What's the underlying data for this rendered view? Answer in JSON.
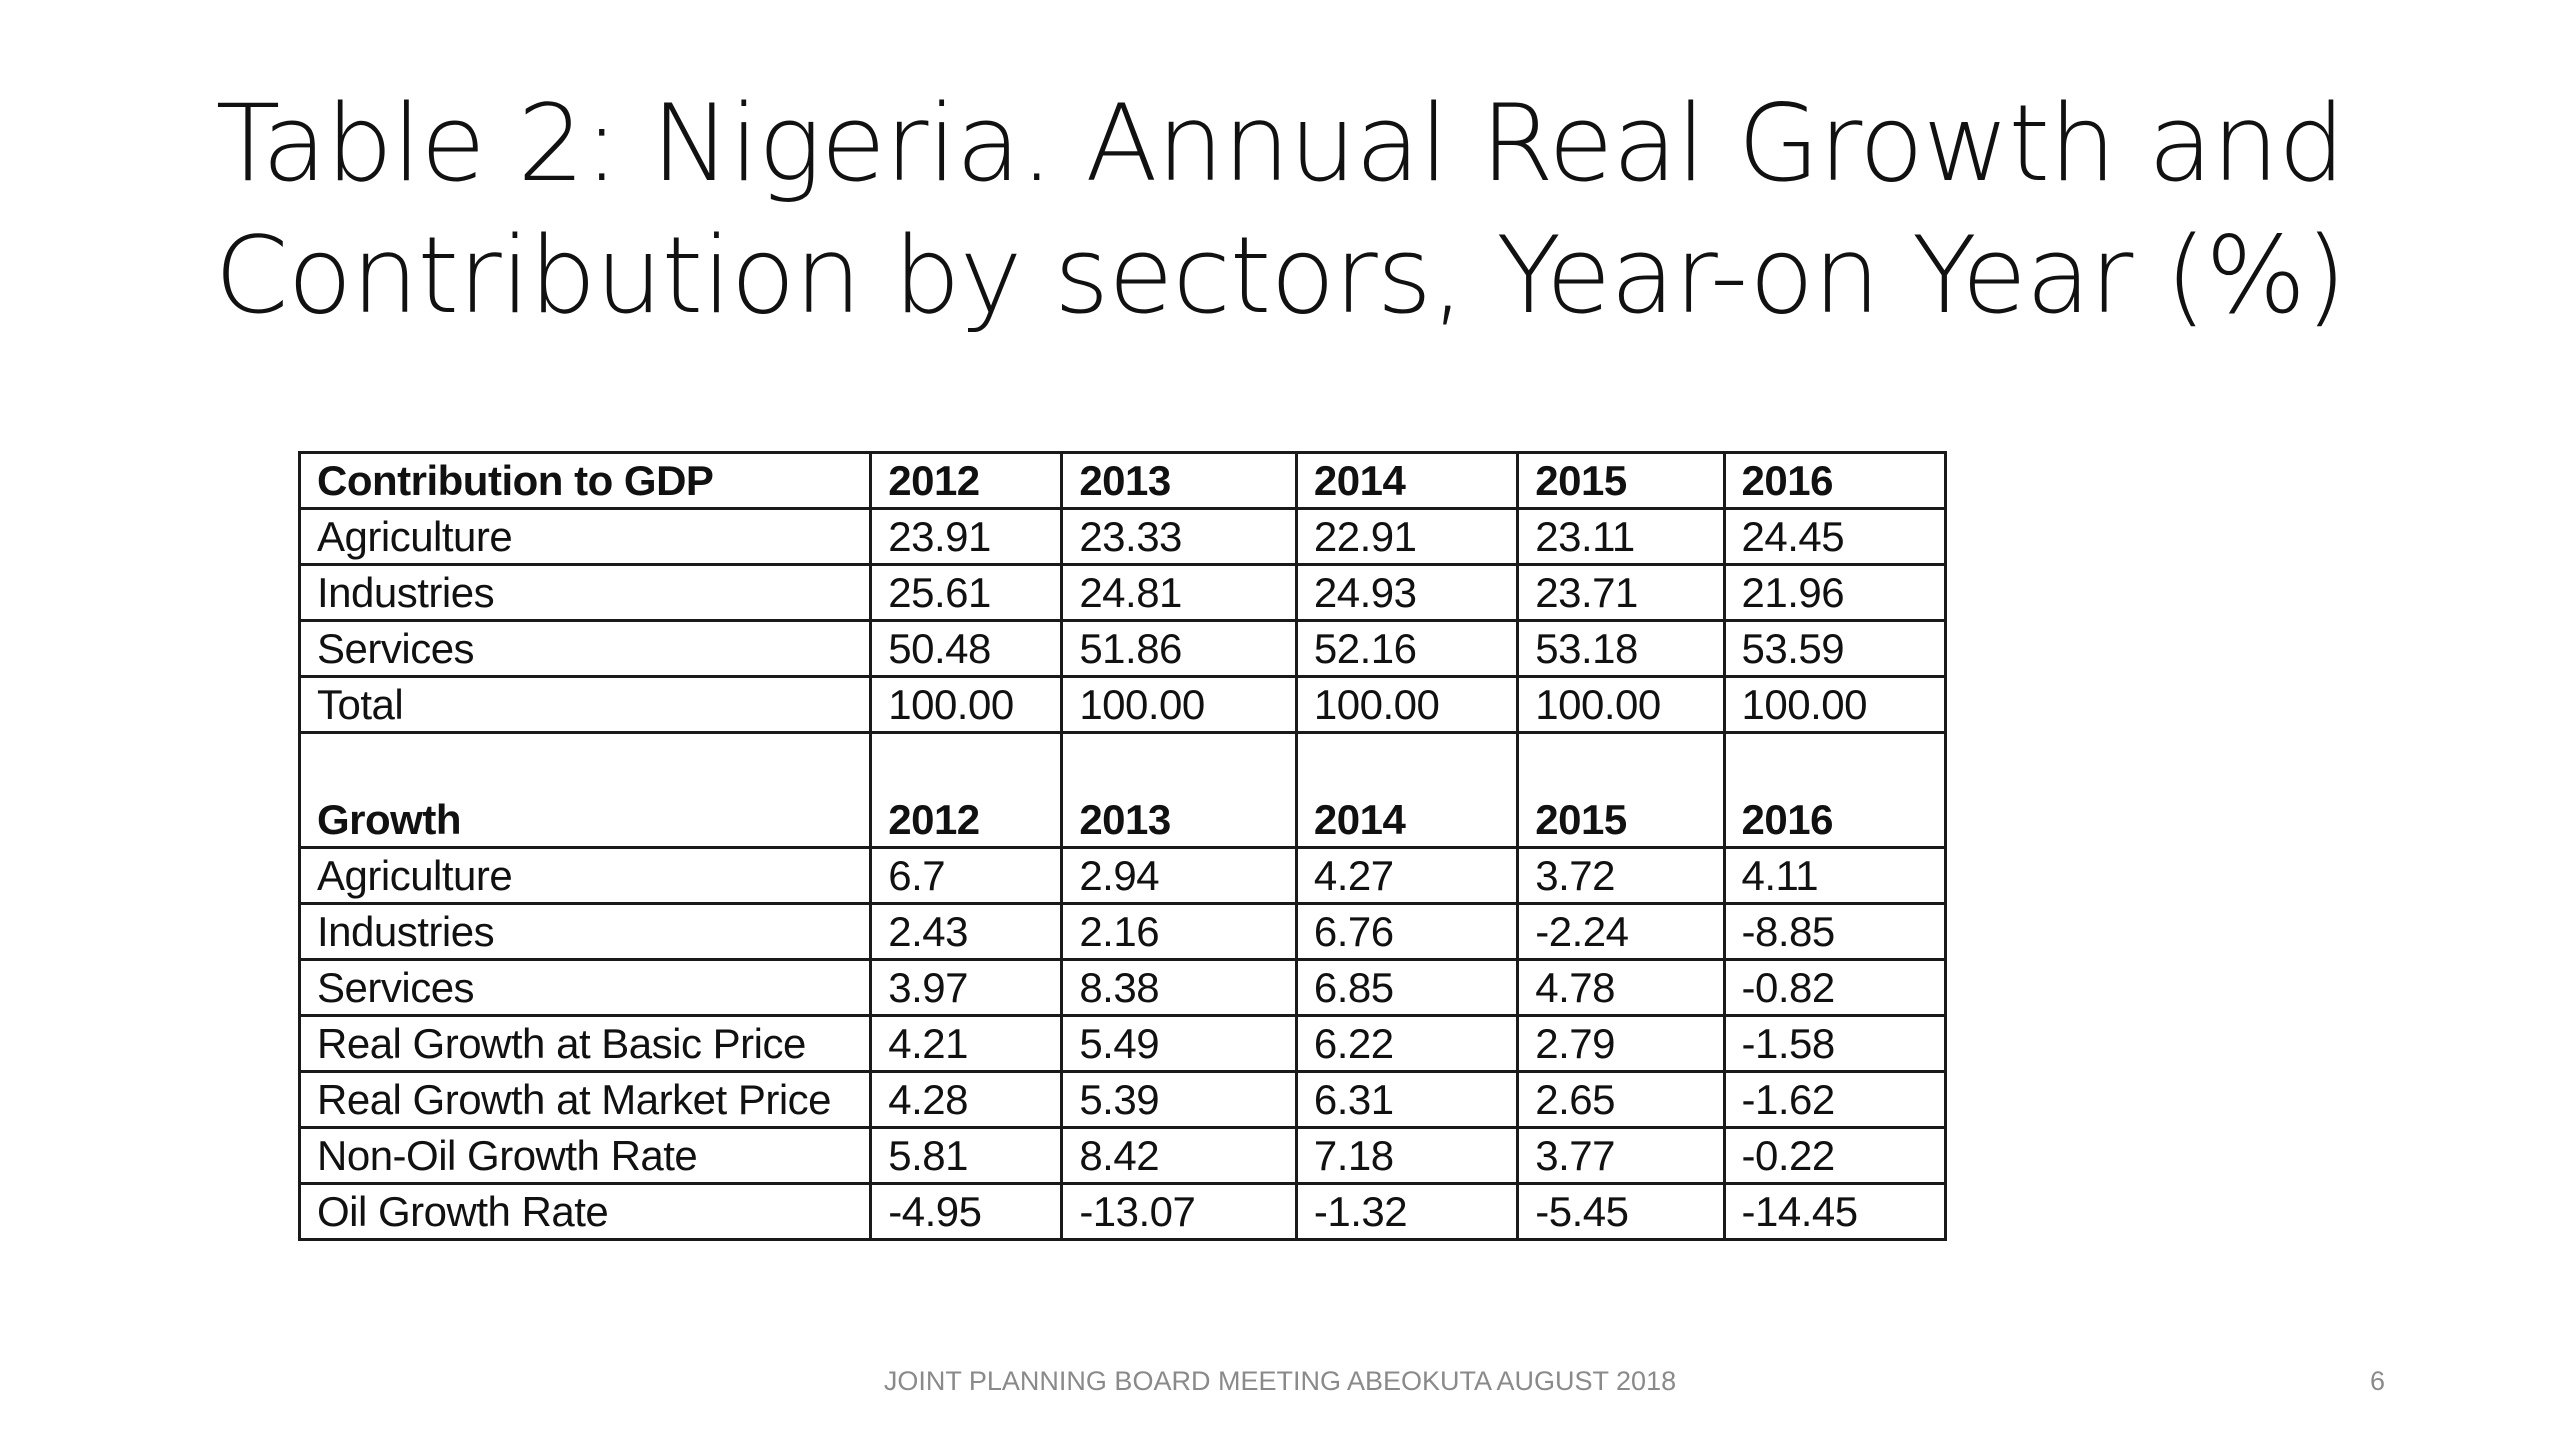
{
  "slide": {
    "title_line1": "Table 2: Nigeria. Annual Real Growth and",
    "title_line2": "Contribution by sectors, Year-on Year (%)",
    "footer": "JOINT PLANNING BOARD MEETING ABEOKUTA AUGUST 2018",
    "page_number": "6"
  },
  "table": {
    "contribution": {
      "header": [
        "Contribution to GDP",
        "2012",
        "2013",
        "2014",
        "2015",
        "2016"
      ],
      "rows": [
        [
          "Agriculture",
          "23.91",
          "23.33",
          "22.91",
          "23.11",
          "24.45"
        ],
        [
          "Industries",
          "25.61",
          "24.81",
          "24.93",
          "23.71",
          "21.96"
        ],
        [
          "Services",
          "50.48",
          "51.86",
          "52.16",
          "53.18",
          "53.59"
        ],
        [
          "Total",
          "100.00",
          "100.00",
          "100.00",
          "100.00",
          "100.00"
        ]
      ]
    },
    "growth": {
      "header": [
        "Growth",
        "2012",
        "2013",
        "2014",
        "2015",
        "2016"
      ],
      "rows": [
        [
          "Agriculture",
          "6.7",
          "2.94",
          "4.27",
          "3.72",
          "4.11"
        ],
        [
          "Industries",
          "2.43",
          "2.16",
          "6.76",
          "-2.24",
          "-8.85"
        ],
        [
          "Services",
          "3.97",
          "8.38",
          "6.85",
          "4.78",
          "-0.82"
        ],
        [
          "Real Growth at Basic Price",
          "4.21",
          "5.49",
          "6.22",
          "2.79",
          "-1.58"
        ],
        [
          "Real Growth at Market Price",
          "4.28",
          "5.39",
          "6.31",
          "2.65",
          "-1.62"
        ],
        [
          "Non-Oil Growth Rate",
          "5.81",
          "8.42",
          "7.18",
          "3.77",
          "-0.22"
        ],
        [
          "Oil Growth Rate",
          "-4.95",
          "-13.07",
          "-1.32",
          "-5.45",
          "-14.45"
        ]
      ]
    }
  }
}
